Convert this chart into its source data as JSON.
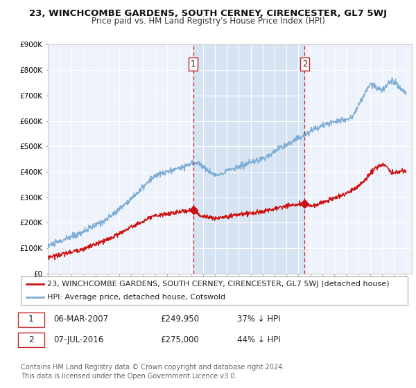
{
  "title": "23, WINCHCOMBE GARDENS, SOUTH CERNEY, CIRENCESTER, GL7 5WJ",
  "subtitle": "Price paid vs. HM Land Registry's House Price Index (HPI)",
  "ylim": [
    0,
    900000
  ],
  "yticks": [
    0,
    100000,
    200000,
    300000,
    400000,
    500000,
    600000,
    700000,
    800000,
    900000
  ],
  "ytick_labels": [
    "£0",
    "£100K",
    "£200K",
    "£300K",
    "£400K",
    "£500K",
    "£600K",
    "£700K",
    "£800K",
    "£900K"
  ],
  "xlim_start": 1995.0,
  "xlim_end": 2025.5,
  "background_color": "#ffffff",
  "plot_bg_color": "#eef2fa",
  "grid_color": "#ffffff",
  "hpi_line_color": "#7eadd4",
  "price_line_color": "#cc1111",
  "marker1_date": 2007.18,
  "marker1_price": 249950,
  "marker2_date": 2016.52,
  "marker2_price": 275000,
  "vline_color": "#cc2222",
  "shade_color": "#ccddf0",
  "legend_label1": "23, WINCHCOMBE GARDENS, SOUTH CERNEY, CIRENCESTER, GL7 5WJ (detached house)",
  "legend_label2": "HPI: Average price, detached house, Cotswold",
  "annotation1_label": "1",
  "annotation2_label": "2",
  "table_row1": [
    "1",
    "06-MAR-2007",
    "£249,950",
    "37% ↓ HPI"
  ],
  "table_row2": [
    "2",
    "07-JUL-2016",
    "£275,000",
    "44% ↓ HPI"
  ],
  "footer": "Contains HM Land Registry data © Crown copyright and database right 2024.\nThis data is licensed under the Open Government Licence v3.0.",
  "title_fontsize": 9.5,
  "subtitle_fontsize": 8.5,
  "tick_fontsize": 7.5,
  "legend_fontsize": 8.0,
  "table_fontsize": 8.5,
  "footer_fontsize": 7.0
}
